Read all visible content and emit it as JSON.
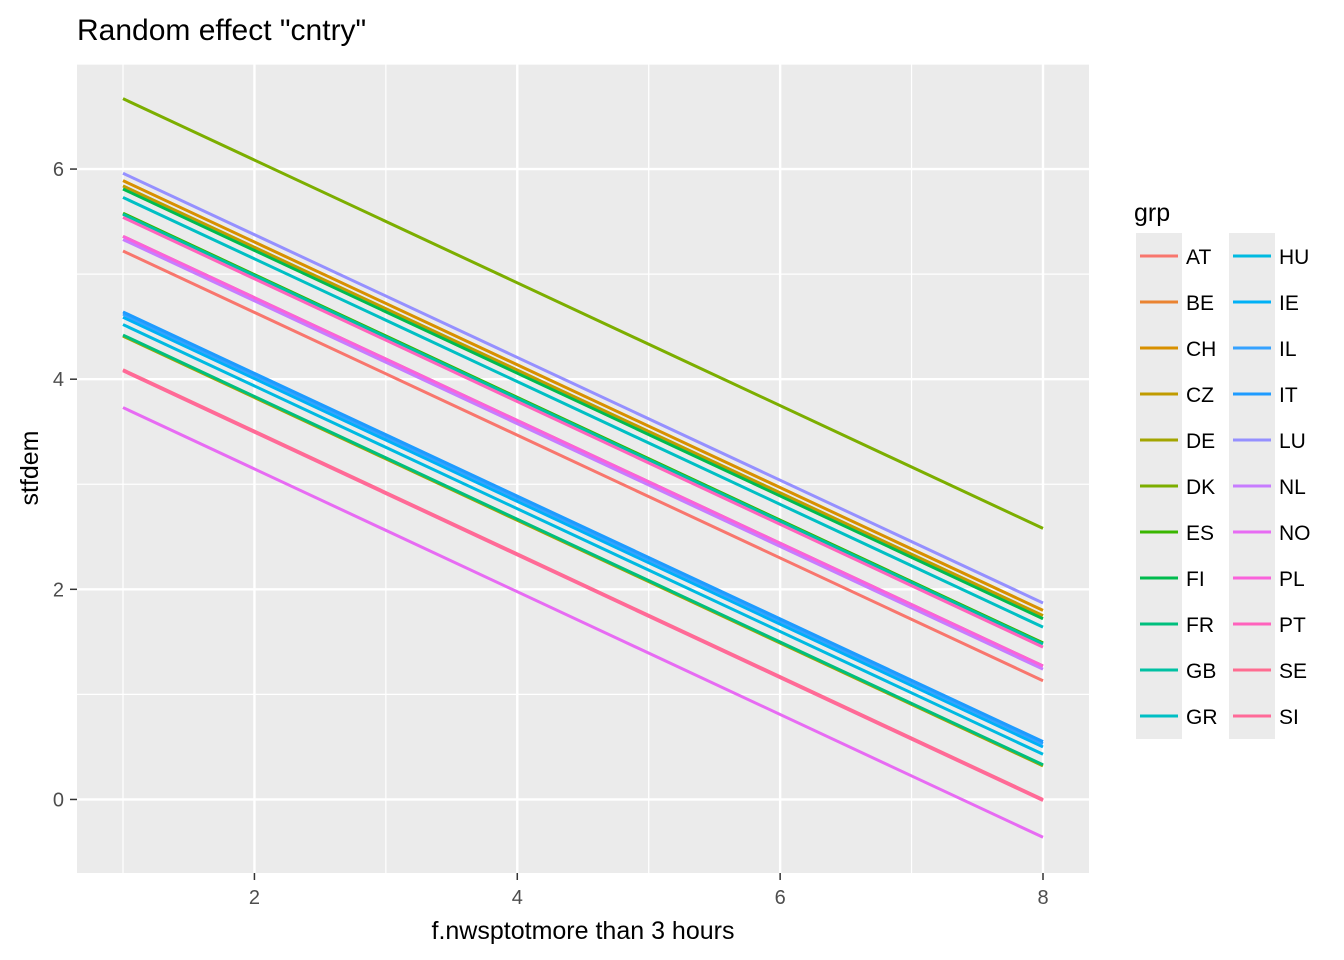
{
  "chart_data": {
    "type": "line",
    "title": "Random effect \"cntry\"",
    "xlabel": "f.nwsptotmore than 3 hours",
    "ylabel": "stfdem",
    "xlim": [
      0.65,
      8.35
    ],
    "ylim": [
      -0.7,
      7.0
    ],
    "x_ticks": [
      2,
      4,
      6,
      8
    ],
    "y_ticks": [
      0,
      2,
      4,
      6
    ],
    "grid": true,
    "legend_title": "grp",
    "legend_position": "right",
    "x": [
      1,
      8
    ],
    "series": [
      {
        "name": "AT",
        "color": "#F8766D",
        "values": [
          5.22,
          1.13
        ]
      },
      {
        "name": "BE",
        "color": "#EA8331",
        "values": [
          5.36,
          1.27
        ]
      },
      {
        "name": "CH",
        "color": "#D89000",
        "values": [
          5.89,
          1.8
        ]
      },
      {
        "name": "CZ",
        "color": "#C09B00",
        "values": [
          5.84,
          1.75
        ]
      },
      {
        "name": "DE",
        "color": "#A3A500",
        "values": [
          4.41,
          0.32
        ]
      },
      {
        "name": "DK",
        "color": "#7CAE00",
        "values": [
          6.67,
          2.58
        ]
      },
      {
        "name": "ES",
        "color": "#39B600",
        "values": [
          5.58,
          1.49
        ]
      },
      {
        "name": "FI",
        "color": "#00BB4E",
        "values": [
          5.81,
          1.72
        ]
      },
      {
        "name": "FR",
        "color": "#00BF7D",
        "values": [
          4.42,
          0.33
        ]
      },
      {
        "name": "GB",
        "color": "#00C1A3",
        "values": [
          5.57,
          1.48
        ]
      },
      {
        "name": "GR",
        "color": "#00BFC4",
        "values": [
          5.73,
          1.64
        ]
      },
      {
        "name": "HU",
        "color": "#00BAE0",
        "values": [
          4.52,
          0.43
        ]
      },
      {
        "name": "IE",
        "color": "#00B0F6",
        "values": [
          4.59,
          0.5
        ]
      },
      {
        "name": "IL",
        "color": "#35A2FF",
        "values": [
          4.62,
          0.53
        ]
      },
      {
        "name": "IT",
        "color": "#1E9BFF",
        "values": [
          4.64,
          0.55
        ]
      },
      {
        "name": "LU",
        "color": "#9590FF",
        "values": [
          5.96,
          1.87
        ]
      },
      {
        "name": "NL",
        "color": "#C77CFF",
        "values": [
          5.33,
          1.24
        ]
      },
      {
        "name": "NO",
        "color": "#E76BF3",
        "values": [
          3.73,
          -0.36
        ]
      },
      {
        "name": "PL",
        "color": "#FA62DB",
        "values": [
          5.36,
          1.27
        ]
      },
      {
        "name": "PT",
        "color": "#FF62BC",
        "values": [
          5.54,
          1.45
        ]
      },
      {
        "name": "SE",
        "color": "#FF6C91",
        "values": [
          4.09,
          0.0
        ]
      },
      {
        "name": "SI",
        "color": "#FF6A98",
        "values": [
          4.08,
          -0.01
        ]
      }
    ]
  }
}
